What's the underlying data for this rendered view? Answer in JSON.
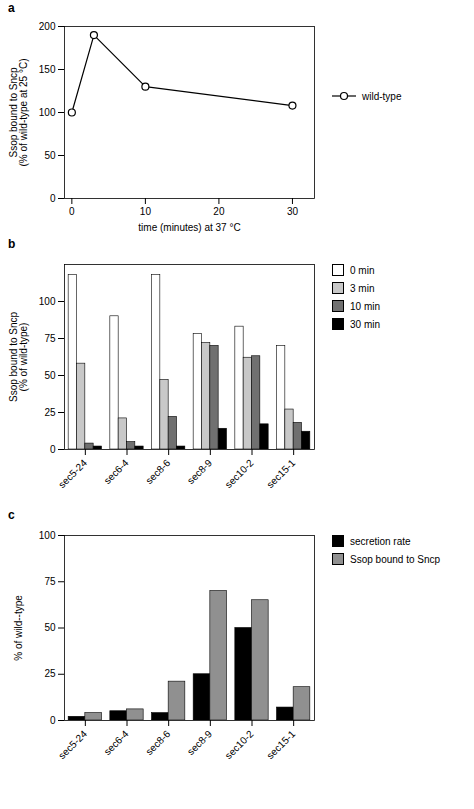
{
  "chart_data": [
    {
      "type": "line",
      "title": "a",
      "x": [
        0,
        3,
        10,
        30
      ],
      "series": [
        {
          "name": "wild-type",
          "color": "#000000",
          "marker": "circle",
          "values": [
            100,
            190,
            130,
            108
          ]
        }
      ],
      "xlabel": "time (minutes) at 37 °C",
      "ylabel": "Ssop bound to Sncp\n(% of wild-type at 25 °C)",
      "xlim": [
        -1,
        33
      ],
      "xticks": [
        0,
        10,
        20,
        30
      ],
      "ylim": [
        0,
        200
      ],
      "yticks": [
        0,
        50,
        100,
        150,
        200
      ],
      "grid": false,
      "legend": "right"
    },
    {
      "type": "bar",
      "title": "b",
      "categories": [
        "sec5-24",
        "sec6-4",
        "sec8-6",
        "sec8-9",
        "sec10-2",
        "sec15-1"
      ],
      "series": [
        {
          "name": "0 min",
          "color": "#ffffff",
          "values": [
            118,
            90,
            118,
            78,
            83,
            70
          ]
        },
        {
          "name": "3 min",
          "color": "#c8c8c8",
          "values": [
            58,
            21,
            47,
            72,
            62,
            27
          ]
        },
        {
          "name": "10 min",
          "color": "#707070",
          "values": [
            4,
            5,
            22,
            70,
            63,
            18
          ]
        },
        {
          "name": "30 min",
          "color": "#000000",
          "values": [
            2,
            2,
            2,
            14,
            17,
            12
          ]
        }
      ],
      "ylabel": "Ssop bound to Sncp\n(% of wild-type)",
      "ylim": [
        0,
        125
      ],
      "yticks": [
        0,
        25,
        50,
        75,
        100
      ],
      "grid": false,
      "legend": "right"
    },
    {
      "type": "bar",
      "title": "c",
      "categories": [
        "sec5-24",
        "sec6-4",
        "sec8-6",
        "sec8-9",
        "sec10-2",
        "sec15-1"
      ],
      "series": [
        {
          "name": "secretion rate",
          "color": "#000000",
          "values": [
            2,
            5,
            4,
            25,
            50,
            7
          ]
        },
        {
          "name": "Ssop bound to Sncp",
          "color": "#909090",
          "values": [
            4,
            6,
            21,
            70,
            65,
            18
          ]
        }
      ],
      "ylabel": "% of wild--type",
      "ylim": [
        0,
        100
      ],
      "yticks": [
        0,
        25,
        50,
        75,
        100
      ],
      "grid": false,
      "legend": "right"
    }
  ]
}
